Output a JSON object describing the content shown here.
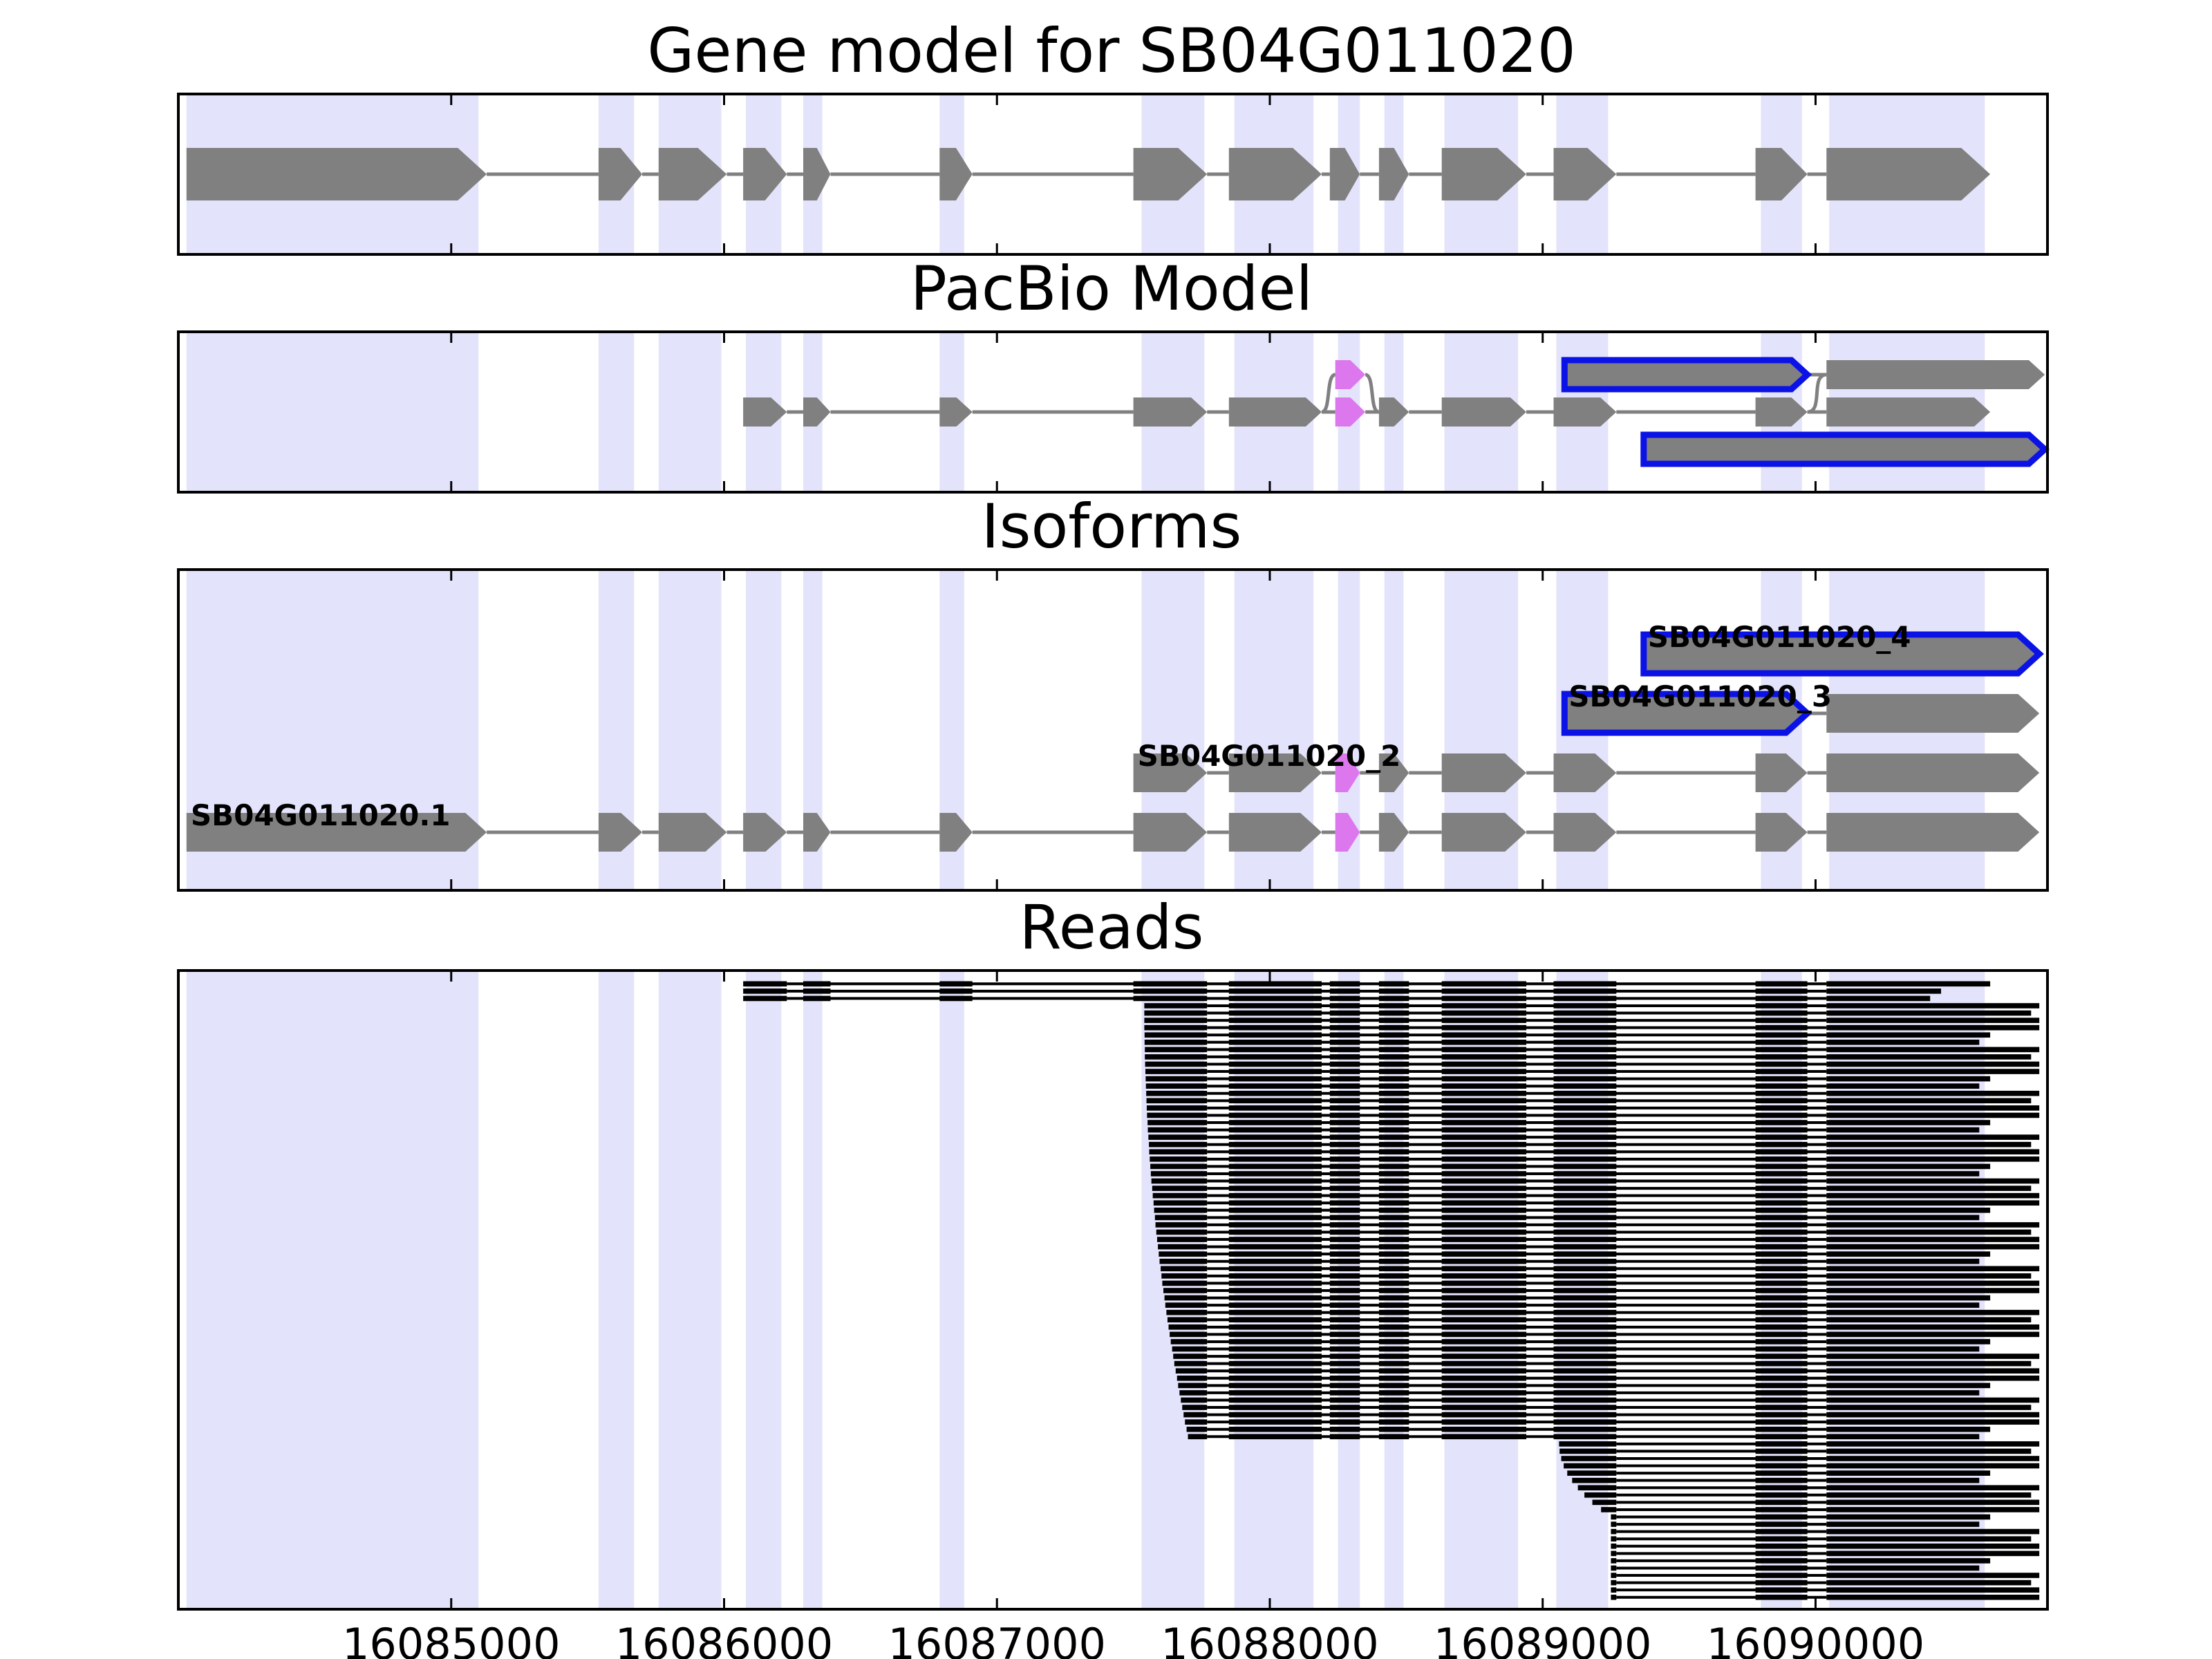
{
  "chart_data": {
    "type": "gene-structure-panels",
    "x_range": [
      16084000,
      16090850
    ],
    "x_ticks": [
      16085000,
      16086000,
      16087000,
      16088000,
      16089000,
      16090000
    ],
    "x_tick_labels": [
      "16085000",
      "16086000",
      "16087000",
      "16088000",
      "16089000",
      "16090000"
    ],
    "colors": {
      "exon_shade": "#e3e3fb",
      "exon": "#808080",
      "intron": "#808080",
      "highlight_exon": "#dd77ee",
      "novel_outline": "#0b12e6",
      "read": "#000000"
    },
    "exon_shading": [
      [
        16084030,
        16085100
      ],
      [
        16085540,
        16085670
      ],
      [
        16085760,
        16085990
      ],
      [
        16086080,
        16086210
      ],
      [
        16086290,
        16086360
      ],
      [
        16086790,
        16086880
      ],
      [
        16087530,
        16087760
      ],
      [
        16087870,
        16088160
      ],
      [
        16088250,
        16088330
      ],
      [
        16088420,
        16088490
      ],
      [
        16088640,
        16088910
      ],
      [
        16089050,
        16089240
      ],
      [
        16089800,
        16089950
      ],
      [
        16090050,
        16090620
      ]
    ],
    "panels": [
      {
        "title": "Gene model for SB04G011020",
        "rows": [
          {
            "exons": [
              [
                16084030,
                16085130
              ],
              [
                16085540,
                16085700
              ],
              [
                16085760,
                16086010
              ],
              [
                16086070,
                16086230
              ],
              [
                16086290,
                16086390
              ],
              [
                16086790,
                16086910
              ],
              [
                16087500,
                16087770
              ],
              [
                16087850,
                16088190
              ],
              [
                16088220,
                16088330
              ],
              [
                16088400,
                16088510
              ],
              [
                16088630,
                16088940
              ],
              [
                16089040,
                16089270
              ],
              [
                16089780,
                16089970
              ],
              [
                16090040,
                16090640
              ]
            ]
          }
        ]
      },
      {
        "title": "PacBio Model",
        "rows": [
          {
            "exons": [
              [
                16086070,
                16086230
              ],
              [
                16086290,
                16086390
              ],
              [
                16086790,
                16086910
              ],
              [
                16087500,
                16087770
              ],
              [
                16087850,
                16088190
              ],
              [
                16088240,
                16088350
              ],
              [
                16088400,
                16088510
              ],
              [
                16088630,
                16088940
              ],
              [
                16089040,
                16089270
              ],
              [
                16089780,
                16089970
              ],
              [
                16090040,
                16090640
              ]
            ],
            "highlight": [
              5
            ],
            "alt_branches": [
              {
                "from_exon": 4,
                "via": [
                  16088240,
                  16088350
                ],
                "to_exon": 6
              },
              {
                "from_exon": 9,
                "via_row_above": true,
                "to_exon": 10
              }
            ]
          },
          {
            "exons": [
              [
                16089080,
                16089970
              ],
              [
                16090040,
                16090840
              ]
            ],
            "outlined": [
              0
            ]
          },
          {
            "exons": [
              [
                16089370,
                16090840
              ]
            ],
            "outlined": [
              0
            ]
          }
        ]
      },
      {
        "title": "Isoforms",
        "rows": [
          {
            "label": "SB04G011020.1",
            "exons": [
              [
                16084030,
                16085130
              ],
              [
                16085540,
                16085700
              ],
              [
                16085760,
                16086010
              ],
              [
                16086070,
                16086230
              ],
              [
                16086290,
                16086390
              ],
              [
                16086790,
                16086910
              ],
              [
                16087500,
                16087770
              ],
              [
                16087850,
                16088190
              ],
              [
                16088240,
                16088330
              ],
              [
                16088400,
                16088510
              ],
              [
                16088630,
                16088940
              ],
              [
                16089040,
                16089270
              ],
              [
                16089780,
                16089970
              ],
              [
                16090040,
                16090820
              ]
            ],
            "highlight": [
              8
            ]
          },
          {
            "label": "SB04G011020_2",
            "exons": [
              [
                16087500,
                16087770
              ],
              [
                16087850,
                16088190
              ],
              [
                16088240,
                16088330
              ],
              [
                16088400,
                16088510
              ],
              [
                16088630,
                16088940
              ],
              [
                16089040,
                16089270
              ],
              [
                16089780,
                16089970
              ],
              [
                16090040,
                16090820
              ]
            ],
            "highlight": [
              2
            ]
          },
          {
            "label": "SB04G011020_3",
            "exons": [
              [
                16089080,
                16089970
              ],
              [
                16090040,
                16090820
              ]
            ],
            "outlined": [
              0
            ]
          },
          {
            "label": "SB04G011020_4",
            "exons": [
              [
                16089370,
                16090820
              ]
            ],
            "outlined": [
              0
            ]
          }
        ]
      },
      {
        "title": "Reads",
        "read_count": 85,
        "read_groups": [
          {
            "count": 3,
            "exons": [
              [
                16086070,
                16086230
              ],
              [
                16086290,
                16086390
              ],
              [
                16086790,
                16086910
              ],
              [
                16087500,
                16087770
              ],
              [
                16087850,
                16088190
              ],
              [
                16088220,
                16088330
              ],
              [
                16088400,
                16088510
              ],
              [
                16088630,
                16088940
              ],
              [
                16089040,
                16089270
              ],
              [
                16089780,
                16089970
              ],
              [
                16090040,
                16090640
              ]
            ]
          },
          {
            "count": 60,
            "first_start_from": 16087540,
            "first_start_to": 16087700,
            "exons": [
              [
                16087540,
                16087770
              ],
              [
                16087850,
                16088190
              ],
              [
                16088220,
                16088330
              ],
              [
                16088400,
                16088510
              ],
              [
                16088630,
                16088940
              ],
              [
                16089040,
                16089270
              ],
              [
                16089780,
                16089970
              ],
              [
                16090040,
                16090820
              ]
            ]
          },
          {
            "count": 22,
            "first_start_from": 16089060,
            "first_start_to": 16089900,
            "exons": [
              [
                16089060,
                16089270
              ],
              [
                16089780,
                16089970
              ],
              [
                16090040,
                16090820
              ]
            ]
          }
        ]
      }
    ]
  }
}
